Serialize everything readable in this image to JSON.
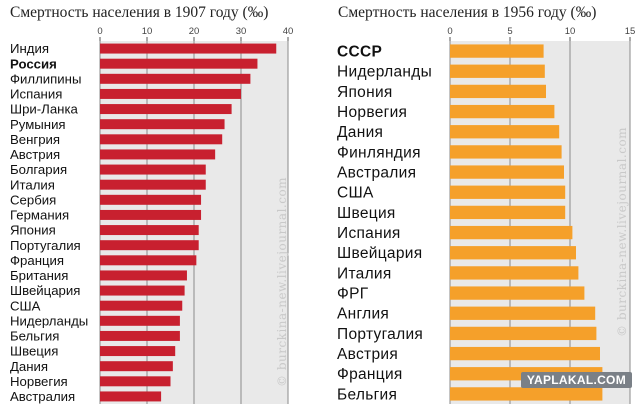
{
  "chart_data": [
    {
      "type": "bar",
      "orientation": "horizontal",
      "title": "Смертность населения в 1907 году (‰)",
      "categories": [
        "Индия",
        "Россия",
        "Филлипины",
        "Испания",
        "Шри-Ланка",
        "Румыния",
        "Венгрия",
        "Австрия",
        "Болгария",
        "Италия",
        "Сербия",
        "Германия",
        "Япония",
        "Португалия",
        "Франция",
        "Британия",
        "Швейцария",
        "США",
        "Нидерланды",
        "Бельгия",
        "Швеция",
        "Дания",
        "Норвегия",
        "Австралия"
      ],
      "highlight": [
        "Россия"
      ],
      "values": [
        37.5,
        33.5,
        32.0,
        30.0,
        28.0,
        26.5,
        26.0,
        24.5,
        22.5,
        22.5,
        21.5,
        21.5,
        21.0,
        21.0,
        20.5,
        18.5,
        18.0,
        17.5,
        17.0,
        17.0,
        16.0,
        15.5,
        15.0,
        13.0
      ],
      "xlim": [
        0,
        40
      ],
      "xticks": [
        "0",
        "10",
        "20",
        "30",
        "40"
      ],
      "grid": true,
      "color": "#c8202f"
    },
    {
      "type": "bar",
      "orientation": "horizontal",
      "title": "Смертность населения в 1956 году (‰)",
      "categories": [
        "СССР",
        "Нидерланды",
        "Япония",
        "Норвегия",
        "Дания",
        "Финляндия",
        "Австралия",
        "США",
        "Швеция",
        "Испания",
        "Швейцария",
        "Италия",
        "ФРГ",
        "Англия",
        "Португалия",
        "Австрия",
        "Франция",
        "Бельгия"
      ],
      "highlight": [
        "СССР"
      ],
      "values": [
        7.8,
        7.9,
        8.0,
        8.7,
        9.1,
        9.3,
        9.5,
        9.6,
        9.6,
        10.2,
        10.5,
        10.7,
        11.2,
        12.1,
        12.2,
        12.5,
        12.7,
        12.7
      ],
      "xlim": [
        0,
        15
      ],
      "xticks": [
        "0",
        "5",
        "10",
        "15"
      ],
      "grid": true,
      "color": "#f5a02a"
    }
  ],
  "watermark_left": "© burckina-new.livejournal.com",
  "watermark_right": "© burckina-new.livejournal.com",
  "badge": "YAPLAKAL.COM"
}
